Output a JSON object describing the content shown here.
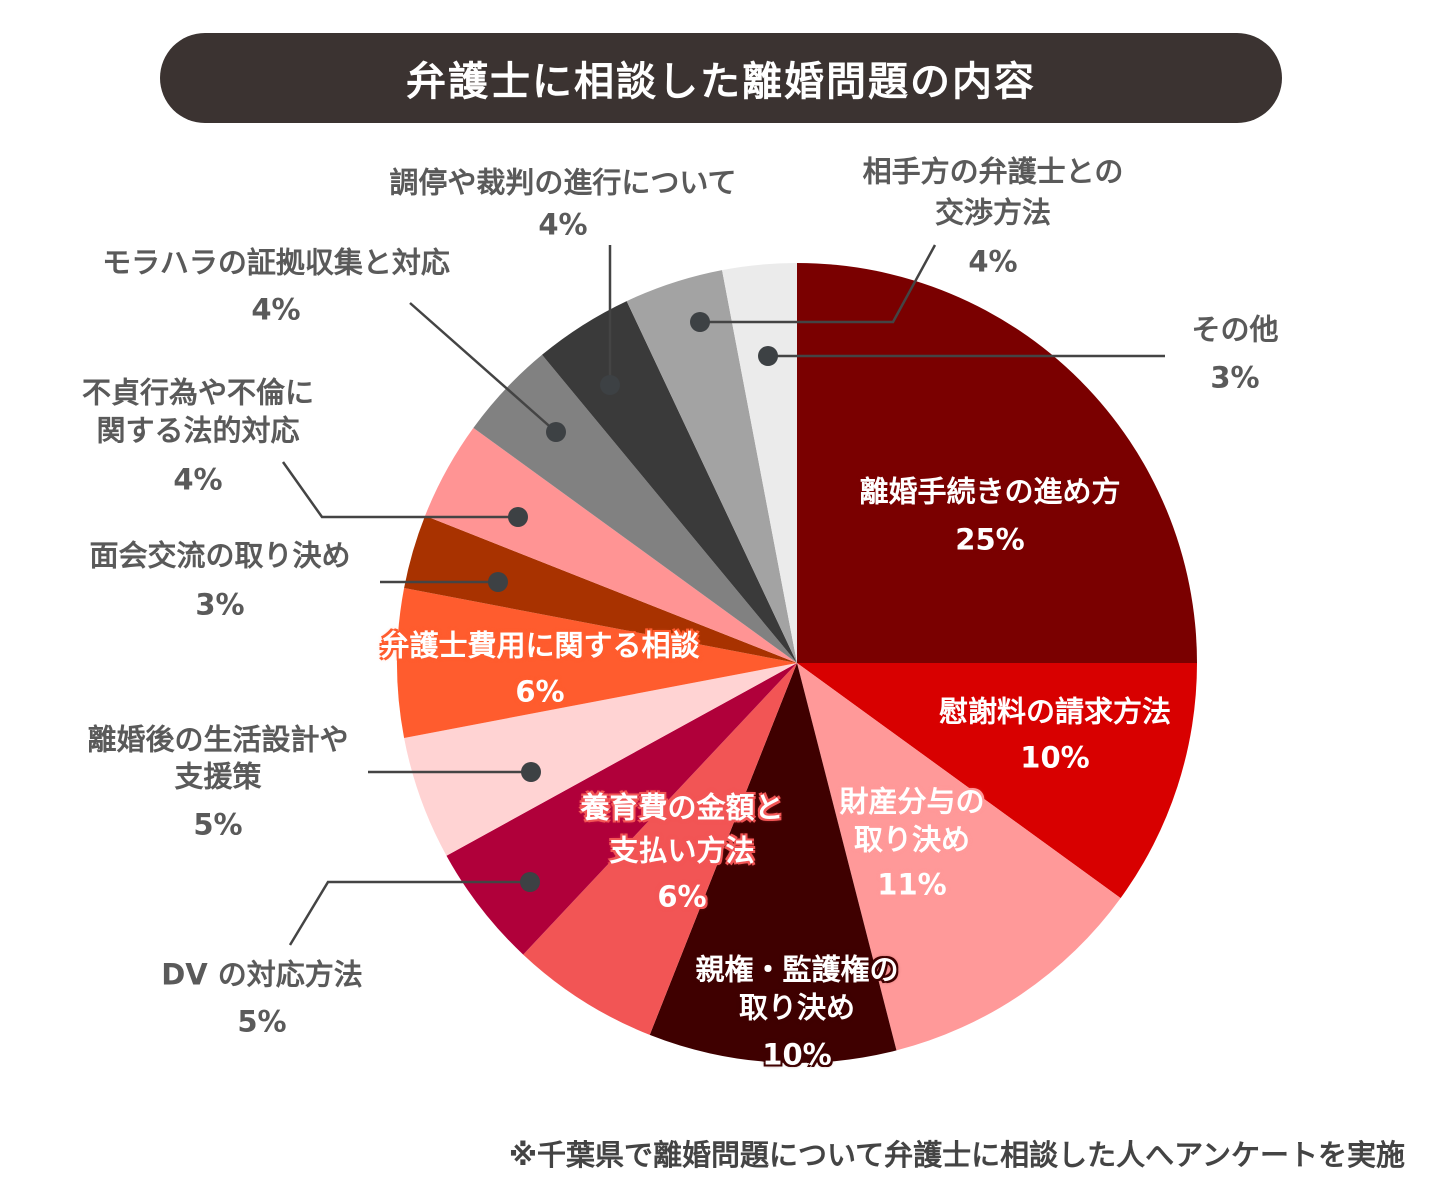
{
  "title": "弁護士に相談した離婚問題の内容",
  "footnote": "※千葉県で離婚問題について弁護士に相談した人へアンケートを実施",
  "chart_data": {
    "type": "pie",
    "title": "弁護士に相談した離婚問題の内容",
    "start": "12 o'clock, clockwise",
    "slices": [
      {
        "label": [
          "離婚手続きの進め方"
        ],
        "value": 25,
        "pct": "25%",
        "color": "#7a0000",
        "label_position": "inside"
      },
      {
        "label": [
          "慰謝料の請求方法"
        ],
        "value": 10,
        "pct": "10%",
        "color": "#d80000",
        "label_position": "inside"
      },
      {
        "label": [
          "財産分与の",
          "取り決め"
        ],
        "value": 11,
        "pct": "11%",
        "color": "#ff9999",
        "label_position": "inside"
      },
      {
        "label": [
          "親権・監護権の",
          "取り決め"
        ],
        "value": 10,
        "pct": "10%",
        "color": "#3f0000",
        "label_position": "inside"
      },
      {
        "label": [
          "養育費の金額と",
          "支払い方法"
        ],
        "value": 6,
        "pct": "6%",
        "color": "#f25555",
        "label_position": "inside"
      },
      {
        "label": [
          "DV の対応方法"
        ],
        "value": 5,
        "pct": "5%",
        "color": "#b0003a",
        "label_position": "outside"
      },
      {
        "label": [
          "離婚後の生活設計や",
          "支援策"
        ],
        "value": 5,
        "pct": "5%",
        "color": "#ffd3d3",
        "label_position": "outside"
      },
      {
        "label": [
          "弁護士費用に関する相談"
        ],
        "value": 6,
        "pct": "6%",
        "color": "#ff5c2e",
        "label_position": "inside"
      },
      {
        "label": [
          "面会交流の取り決め"
        ],
        "value": 3,
        "pct": "3%",
        "color": "#a83200",
        "label_position": "outside"
      },
      {
        "label": [
          "不貞行為や不倫に",
          "関する法的対応"
        ],
        "value": 4,
        "pct": "4%",
        "color": "#ff9494",
        "label_position": "outside"
      },
      {
        "label": [
          "モラハラの証拠収集と対応"
        ],
        "value": 4,
        "pct": "4%",
        "color": "#818181",
        "label_position": "outside"
      },
      {
        "label": [
          "調停や裁判の進行について"
        ],
        "value": 4,
        "pct": "4%",
        "color": "#3a3a3a",
        "label_position": "outside"
      },
      {
        "label": [
          "相手方の弁護士との",
          "交渉方法"
        ],
        "value": 4,
        "pct": "4%",
        "color": "#a3a3a3",
        "label_position": "outside"
      },
      {
        "label": [
          "その他"
        ],
        "value": 3,
        "pct": "3%",
        "color": "#ebebeb",
        "label_position": "outside"
      }
    ]
  }
}
